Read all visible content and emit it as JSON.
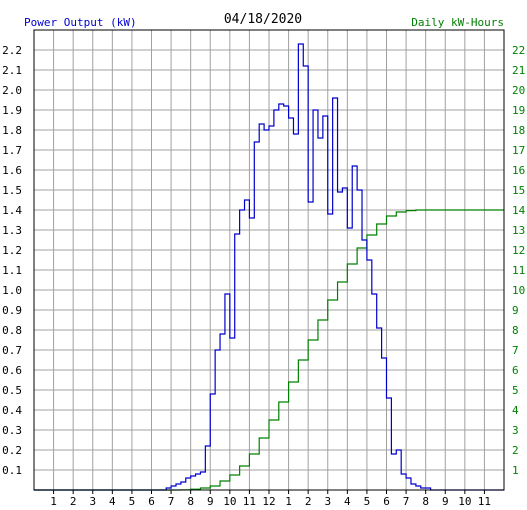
{
  "chart_data": {
    "type": "line",
    "title": "04/18/2020",
    "left_axis_label": "Power Output (kW)",
    "right_axis_label": "Daily kW-Hours",
    "colors": {
      "power": "#0000cc",
      "energy": "#008000",
      "left_label": "#0000cc",
      "right_label": "#008000",
      "grid": "#a0a0a0",
      "frame": "#000000"
    },
    "x_tick_labels": [
      "1",
      "2",
      "3",
      "4",
      "5",
      "6",
      "7",
      "8",
      "9",
      "10",
      "11",
      "12",
      "1",
      "2",
      "3",
      "4",
      "5",
      "6",
      "7",
      "8",
      "9",
      "10",
      "11"
    ],
    "x_range_hours": [
      0,
      24
    ],
    "left_ylim": [
      0,
      2.3
    ],
    "left_ticks": [
      "0.1",
      "0.2",
      "0.3",
      "0.4",
      "0.5",
      "0.6",
      "0.7",
      "0.8",
      "0.9",
      "1.0",
      "1.1",
      "1.2",
      "1.3",
      "1.4",
      "1.5",
      "1.6",
      "1.7",
      "1.8",
      "1.9",
      "2.0",
      "2.1",
      "2.2"
    ],
    "right_ylim": [
      0,
      23
    ],
    "right_ticks": [
      "1",
      "2",
      "3",
      "4",
      "5",
      "6",
      "7",
      "8",
      "9",
      "10",
      "11",
      "12",
      "13",
      "14",
      "15",
      "16",
      "17",
      "18",
      "19",
      "20",
      "21",
      "22"
    ],
    "series": [
      {
        "name": "Power Output (kW)",
        "axis": "left",
        "step_minutes": 15,
        "x_hours": [
          6.75,
          7.0,
          7.25,
          7.5,
          7.75,
          8.0,
          8.25,
          8.5,
          8.75,
          9.0,
          9.25,
          9.5,
          9.75,
          10.0,
          10.25,
          10.5,
          10.75,
          11.0,
          11.25,
          11.5,
          11.75,
          12.0,
          12.25,
          12.5,
          12.75,
          13.0,
          13.25,
          13.5,
          13.75,
          14.0,
          14.25,
          14.5,
          14.75,
          15.0,
          15.25,
          15.5,
          15.75,
          16.0,
          16.25,
          16.5,
          16.75,
          17.0,
          17.25,
          17.5,
          17.75,
          18.0,
          18.25,
          18.5,
          18.75,
          19.0,
          19.25,
          19.5,
          19.75,
          20.0,
          20.25,
          20.5,
          20.75,
          21.0
        ],
        "values": [
          0.01,
          0.02,
          0.03,
          0.04,
          0.06,
          0.07,
          0.08,
          0.09,
          0.22,
          0.48,
          0.7,
          0.78,
          0.98,
          0.76,
          1.28,
          1.4,
          1.45,
          1.36,
          1.74,
          1.83,
          1.8,
          1.82,
          1.9,
          1.93,
          1.92,
          1.86,
          1.78,
          2.23,
          2.12,
          1.44,
          1.9,
          1.76,
          1.87,
          1.38,
          1.96,
          1.49,
          1.51,
          1.31,
          1.62,
          1.5,
          1.25,
          1.15,
          0.98,
          0.81,
          0.66,
          0.46,
          0.18,
          0.2,
          0.08,
          0.06,
          0.03,
          0.02,
          0.01,
          0.01,
          0.0,
          0.0,
          0.0,
          0.0
        ]
      },
      {
        "name": "Daily kW-Hours",
        "axis": "right",
        "x_hours": [
          7.0,
          7.5,
          8.0,
          8.5,
          9.0,
          9.5,
          10.0,
          10.5,
          11.0,
          11.5,
          12.0,
          12.5,
          13.0,
          13.5,
          14.0,
          14.5,
          15.0,
          15.5,
          16.0,
          16.5,
          17.0,
          17.5,
          18.0,
          18.5,
          19.0,
          19.5,
          20.0,
          20.5,
          21.0,
          22.0,
          24.0
        ],
        "values": [
          0.0,
          0.01,
          0.04,
          0.1,
          0.2,
          0.45,
          0.75,
          1.2,
          1.8,
          2.6,
          3.5,
          4.4,
          5.4,
          6.5,
          7.5,
          8.5,
          9.5,
          10.4,
          11.3,
          12.1,
          12.75,
          13.3,
          13.7,
          13.9,
          13.97,
          14.0,
          14.0,
          14.0,
          14.0,
          14.0,
          14.0
        ]
      }
    ]
  }
}
